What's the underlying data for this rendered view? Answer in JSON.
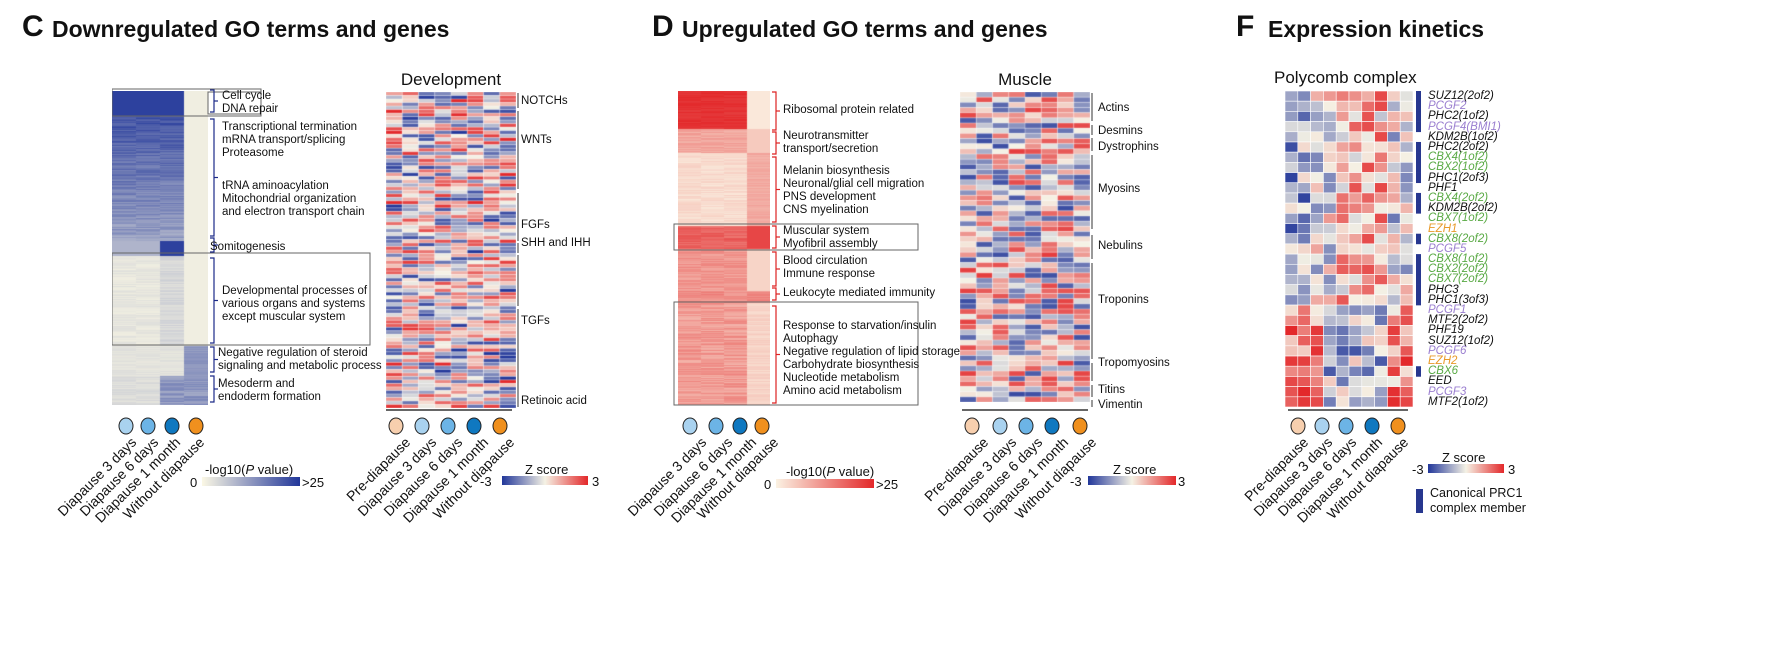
{
  "panels": {
    "c": {
      "letter": "C",
      "title": "Downregulated GO terms and genes"
    },
    "d": {
      "letter": "D",
      "title": "Upregulated GO terms and genes"
    },
    "f": {
      "letter": "F",
      "title": "Expression kinetics"
    }
  },
  "c_go": {
    "terms": [
      {
        "text": "Cell cycle\nDNA repair"
      },
      {
        "text": "Transcriptional termination\nmRNA transport/splicing\nProteasome"
      },
      {
        "text": "tRNA aminoacylation\nMitochondrial organization\nand electron transport chain"
      },
      {
        "text": "Somitogenesis"
      },
      {
        "text": "Developmental processes of\nvarious organs and systems\nexcept muscular system"
      },
      {
        "text": "Negative regulation of steroid\nsignaling and metabolic process"
      },
      {
        "text": "Mesoderm and\nendoderm formation"
      }
    ],
    "x_labels": [
      "Diapause 3 days",
      "Diapause 6 days",
      "Diapause 1 month",
      "Without diapause"
    ],
    "scale": {
      "label": "-log10(P value)",
      "min": "0",
      "max": ">25"
    }
  },
  "c_dev": {
    "title": "Development",
    "groups": [
      "NOTCHs",
      "WNTs",
      "FGFs",
      "SHH and IHH",
      "TGFs",
      "Retinoic acid"
    ],
    "x_labels": [
      "Pre-diapause",
      "Diapause 3 days",
      "Diapause 6 days",
      "Diapause 1 month",
      "Without diapause"
    ],
    "scale": {
      "label": "Z score",
      "min": "-3",
      "max": "3"
    }
  },
  "d_go": {
    "terms": [
      {
        "text": "Ribosomal protein related"
      },
      {
        "text": "Neurotransmitter\ntransport/secretion"
      },
      {
        "text": "Melanin biosynthesis\nNeuronal/glial cell migration\nPNS development\nCNS myelination"
      },
      {
        "text": "Muscular system\nMyofibril assembly"
      },
      {
        "text": "Blood circulation\nImmune response"
      },
      {
        "text": "Leukocyte mediated immunity"
      },
      {
        "text": "Response to starvation/insulin\nAutophagy\nNegative regulation of lipid storage\nCarbohydrate biosynthesis\nNucleotide metabolism\nAmino acid metabolism"
      }
    ],
    "x_labels": [
      "Diapause 3 days",
      "Diapause 6 days",
      "Diapause 1 month",
      "Without diapause"
    ],
    "scale": {
      "label": "-log10(P value)",
      "min": "0",
      "max": ">25"
    }
  },
  "d_muscle": {
    "title": "Muscle",
    "groups": [
      "Actins",
      "Desmins",
      "Dystrophins",
      "Myosins",
      "Nebulins",
      "Troponins",
      "Tropomyosins",
      "Titins",
      "Vimentin"
    ],
    "x_labels": [
      "Pre-diapause",
      "Diapause 3 days",
      "Diapause 6 days",
      "Diapause 1 month",
      "Without diapause"
    ],
    "scale": {
      "label": "Z score",
      "min": "-3",
      "max": "3"
    }
  },
  "f_pc": {
    "title": "Polycomb complex",
    "genes": [
      {
        "name": "SUZ12(2of2)",
        "color": "#111111",
        "prc1": true
      },
      {
        "name": "PCGF2",
        "color": "#9b7fd0",
        "prc1": true
      },
      {
        "name": "PHC2(1of2)",
        "color": "#111111",
        "prc1": true
      },
      {
        "name": "PCGF4(BMI1)",
        "color": "#9b7fd0",
        "prc1": true
      },
      {
        "name": "KDM2B(1of2)",
        "color": "#111111",
        "prc1": false
      },
      {
        "name": "PHC2(2of2)",
        "color": "#111111",
        "prc1": true
      },
      {
        "name": "CBX4(1of2)",
        "color": "#5aaa45",
        "prc1": true
      },
      {
        "name": "CBX2(1of2)",
        "color": "#5aaa45",
        "prc1": true
      },
      {
        "name": "PHC1(2of3)",
        "color": "#111111",
        "prc1": true
      },
      {
        "name": "PHF1",
        "color": "#111111",
        "prc1": false
      },
      {
        "name": "CBX4(2of2)",
        "color": "#5aaa45",
        "prc1": true
      },
      {
        "name": "KDM2B(2of2)",
        "color": "#111111",
        "prc1": true
      },
      {
        "name": "CBX7(1of2)",
        "color": "#5aaa45",
        "prc1": false
      },
      {
        "name": "EZH1",
        "color": "#e89a2a",
        "prc1": false
      },
      {
        "name": "CBX8(2of2)",
        "color": "#5aaa45",
        "prc1": true
      },
      {
        "name": "PCGF5",
        "color": "#9b7fd0",
        "prc1": false
      },
      {
        "name": "CBX8(1of2)",
        "color": "#5aaa45",
        "prc1": true
      },
      {
        "name": "CBX2(2of2)",
        "color": "#5aaa45",
        "prc1": true
      },
      {
        "name": "CBX7(2of2)",
        "color": "#5aaa45",
        "prc1": true
      },
      {
        "name": "PHC3",
        "color": "#111111",
        "prc1": true
      },
      {
        "name": "PHC1(3of3)",
        "color": "#111111",
        "prc1": true
      },
      {
        "name": "PCGF1",
        "color": "#9b7fd0",
        "prc1": false
      },
      {
        "name": "MTF2(2of2)",
        "color": "#111111",
        "prc1": false
      },
      {
        "name": "PHF19",
        "color": "#111111",
        "prc1": false
      },
      {
        "name": "SUZ12(1of2)",
        "color": "#111111",
        "prc1": false
      },
      {
        "name": "PCGF6",
        "color": "#9b7fd0",
        "prc1": false
      },
      {
        "name": "EZH2",
        "color": "#e89a2a",
        "prc1": false
      },
      {
        "name": "CBX6",
        "color": "#5aaa45",
        "prc1": true
      },
      {
        "name": "EED",
        "color": "#111111",
        "prc1": false
      },
      {
        "name": "PCGF3",
        "color": "#9b7fd0",
        "prc1": false
      },
      {
        "name": "MTF2(1of2)",
        "color": "#111111",
        "prc1": false
      }
    ],
    "x_labels": [
      "Pre-diapause",
      "Diapause 3 days",
      "Diapause 6 days",
      "Diapause 1 month",
      "Without diapause"
    ],
    "scale": {
      "label": "Z score",
      "min": "-3",
      "max": "3"
    },
    "legend": "Canonical PRC1\ncomplex member"
  },
  "colors": {
    "blue_scale": "#22379a",
    "red_scale": "#e3282a",
    "pre_diapause": "#f7cfae",
    "diapause_3d": "#a9d2ef",
    "diapause_6d": "#6cb4e6",
    "diapause_1m": "#0f78c0",
    "without_diapause": "#f0901e",
    "prc1_bar": "#27378f"
  }
}
